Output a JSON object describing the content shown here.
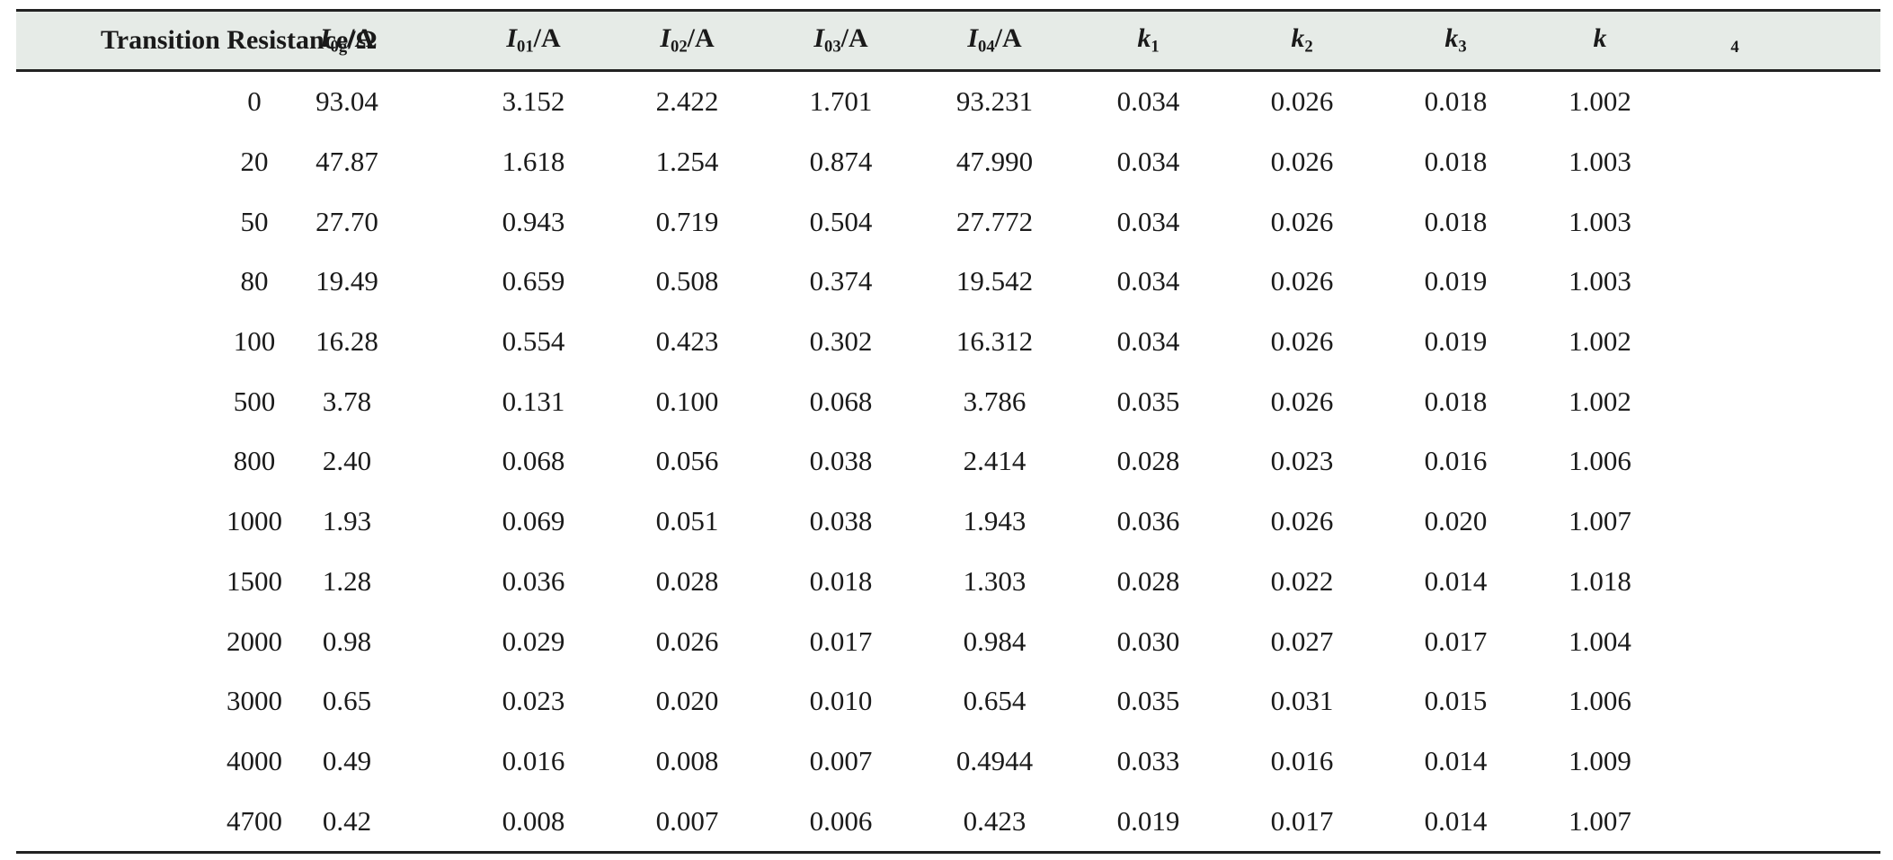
{
  "table": {
    "headers": [
      {
        "label": "Transition Resistance/Ω"
      },
      {
        "sym": "I",
        "sub": "0g",
        "unit": "/A"
      },
      {
        "sym": "I",
        "sub": "01",
        "unit": "/A"
      },
      {
        "sym": "I",
        "sub": "02",
        "unit": "/A"
      },
      {
        "sym": "I",
        "sub": "03",
        "unit": "/A"
      },
      {
        "sym": "I",
        "sub": "04",
        "unit": "/A"
      },
      {
        "sym": "k",
        "sub": "1",
        "unit": ""
      },
      {
        "sym": "k",
        "sub": "2",
        "unit": ""
      },
      {
        "sym": "k",
        "sub": "3",
        "unit": ""
      },
      {
        "sym": "k",
        "sub": "4",
        "unit": ""
      }
    ],
    "rows": [
      [
        "0",
        "93.04",
        "3.152",
        "2.422",
        "1.701",
        "93.231",
        "0.034",
        "0.026",
        "0.018",
        "1.002"
      ],
      [
        "20",
        "47.87",
        "1.618",
        "1.254",
        "0.874",
        "47.990",
        "0.034",
        "0.026",
        "0.018",
        "1.003"
      ],
      [
        "50",
        "27.70",
        "0.943",
        "0.719",
        "0.504",
        "27.772",
        "0.034",
        "0.026",
        "0.018",
        "1.003"
      ],
      [
        "80",
        "19.49",
        "0.659",
        "0.508",
        "0.374",
        "19.542",
        "0.034",
        "0.026",
        "0.019",
        "1.003"
      ],
      [
        "100",
        "16.28",
        "0.554",
        "0.423",
        "0.302",
        "16.312",
        "0.034",
        "0.026",
        "0.019",
        "1.002"
      ],
      [
        "500",
        "3.78",
        "0.131",
        "0.100",
        "0.068",
        "3.786",
        "0.035",
        "0.026",
        "0.018",
        "1.002"
      ],
      [
        "800",
        "2.40",
        "0.068",
        "0.056",
        "0.038",
        "2.414",
        "0.028",
        "0.023",
        "0.016",
        "1.006"
      ],
      [
        "1000",
        "1.93",
        "0.069",
        "0.051",
        "0.038",
        "1.943",
        "0.036",
        "0.026",
        "0.020",
        "1.007"
      ],
      [
        "1500",
        "1.28",
        "0.036",
        "0.028",
        "0.018",
        "1.303",
        "0.028",
        "0.022",
        "0.014",
        "1.018"
      ],
      [
        "2000",
        "0.98",
        "0.029",
        "0.026",
        "0.017",
        "0.984",
        "0.030",
        "0.027",
        "0.017",
        "1.004"
      ],
      [
        "3000",
        "0.65",
        "0.023",
        "0.020",
        "0.010",
        "0.654",
        "0.035",
        "0.031",
        "0.015",
        "1.006"
      ],
      [
        "4000",
        "0.49",
        "0.016",
        "0.008",
        "0.007",
        "0.4944",
        "0.033",
        "0.016",
        "0.014",
        "1.009"
      ],
      [
        "4700",
        "0.42",
        "0.008",
        "0.007",
        "0.006",
        "0.423",
        "0.019",
        "0.017",
        "0.014",
        "1.007"
      ]
    ]
  }
}
